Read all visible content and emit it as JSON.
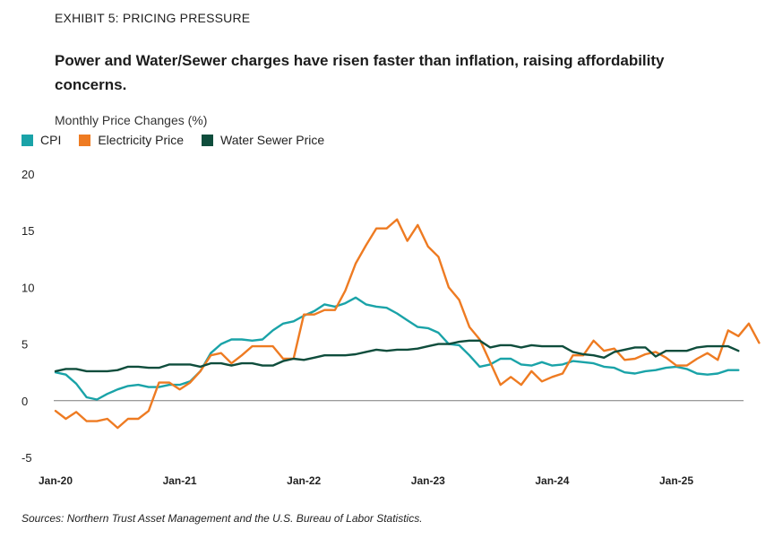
{
  "exhibit_label": "EXHIBIT 5: PRICING PRESSURE",
  "headline": "Power and Water/Sewer charges have risen faster than inflation, raising affordability concerns.",
  "source_note": "Sources: Northern Trust Asset Management and the U.S. Bureau of Labor Statistics.",
  "chart_data": {
    "type": "line",
    "title": "",
    "ylabel": "Monthly Price Changes (%)",
    "xlabel": "",
    "ylim": [
      -5,
      20
    ],
    "y_ticks": [
      "20",
      "15",
      "10",
      "5",
      "0",
      "-5"
    ],
    "x_tick_labels": [
      "Jan-20",
      "Jan-21",
      "Jan-22",
      "Jan-23",
      "Jan-24",
      "Jan-25"
    ],
    "x_start": "Jan-20",
    "x_frequency": "monthly",
    "grid": false,
    "legend_position": "top-left",
    "series": [
      {
        "name": "CPI",
        "color": "#1aa3a8",
        "values": [
          2.5,
          2.3,
          1.5,
          0.3,
          0.1,
          0.6,
          1.0,
          1.3,
          1.4,
          1.2,
          1.2,
          1.4,
          1.4,
          1.7,
          2.6,
          4.2,
          5.0,
          5.4,
          5.4,
          5.3,
          5.4,
          6.2,
          6.8,
          7.0,
          7.5,
          7.9,
          8.5,
          8.3,
          8.6,
          9.1,
          8.5,
          8.3,
          8.2,
          7.7,
          7.1,
          6.5,
          6.4,
          6.0,
          5.0,
          4.9,
          4.0,
          3.0,
          3.2,
          3.7,
          3.7,
          3.2,
          3.1,
          3.4,
          3.1,
          3.2,
          3.5,
          3.4,
          3.3,
          3.0,
          2.9,
          2.5,
          2.4,
          2.6,
          2.7,
          2.9,
          3.0,
          2.8,
          2.4,
          2.3,
          2.4,
          2.7,
          2.7
        ],
        "values_note": "approx"
      },
      {
        "name": "Electricity Price",
        "color": "#ee7b22",
        "values": [
          -0.9,
          -1.6,
          -1.0,
          -1.8,
          -1.8,
          -1.6,
          -2.4,
          -1.6,
          -1.6,
          -0.9,
          1.6,
          1.6,
          1.0,
          1.6,
          2.6,
          4.0,
          4.2,
          3.3,
          4.0,
          4.8,
          4.8,
          4.8,
          3.7,
          3.7,
          7.6,
          7.6,
          8.0,
          8.0,
          9.7,
          12.1,
          13.7,
          15.2,
          15.2,
          16.0,
          14.1,
          15.5,
          13.6,
          12.7,
          10.0,
          8.9,
          6.5,
          5.4,
          3.4,
          1.4,
          2.1,
          1.4,
          2.6,
          1.7,
          2.1,
          2.4,
          4.0,
          4.0,
          5.3,
          4.4,
          4.6,
          3.6,
          3.7,
          4.1,
          4.3,
          3.8,
          3.1,
          3.1,
          3.7,
          4.2,
          3.6,
          6.2,
          5.7,
          6.8,
          5.1
        ],
        "values_note": "approx"
      },
      {
        "name": "Water Sewer Price",
        "color": "#0f4d3c",
        "values": [
          2.6,
          2.8,
          2.8,
          2.6,
          2.6,
          2.6,
          2.7,
          3.0,
          3.0,
          2.9,
          2.9,
          3.2,
          3.2,
          3.2,
          3.0,
          3.3,
          3.3,
          3.1,
          3.3,
          3.3,
          3.1,
          3.1,
          3.5,
          3.7,
          3.6,
          3.8,
          4.0,
          4.0,
          4.0,
          4.1,
          4.3,
          4.5,
          4.4,
          4.5,
          4.5,
          4.6,
          4.8,
          5.0,
          5.0,
          5.2,
          5.3,
          5.3,
          4.7,
          4.9,
          4.9,
          4.7,
          4.9,
          4.8,
          4.8,
          4.8,
          4.3,
          4.1,
          4.0,
          3.8,
          4.3,
          4.5,
          4.7,
          4.7,
          3.9,
          4.4,
          4.4,
          4.4,
          4.7,
          4.8,
          4.8,
          4.8,
          4.4
        ],
        "values_note": "approx"
      }
    ]
  }
}
